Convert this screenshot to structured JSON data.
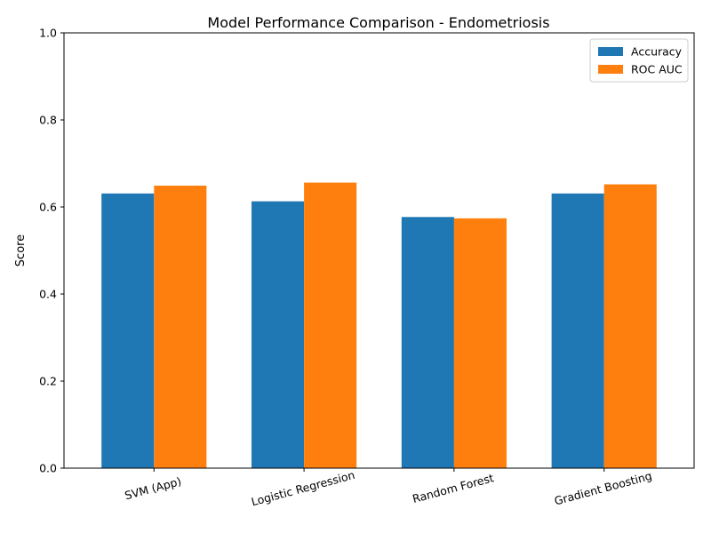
{
  "chart_data": {
    "type": "bar",
    "title": "Model Performance Comparison - Endometriosis",
    "xlabel": "",
    "ylabel": "Score",
    "ylim": [
      0,
      1.0
    ],
    "yticks": [
      "0.0",
      "0.2",
      "0.4",
      "0.6",
      "0.8",
      "1.0"
    ],
    "categories": [
      "SVM (App)",
      "Logistic Regression",
      "Random Forest",
      "Gradient Boosting"
    ],
    "series": [
      {
        "name": "Accuracy",
        "color": "#1f77b4",
        "values": [
          0.631,
          0.613,
          0.577,
          0.631
        ]
      },
      {
        "name": "ROC AUC",
        "color": "#ff7f0e",
        "values": [
          0.649,
          0.656,
          0.574,
          0.652
        ]
      }
    ],
    "legend_position": "top-right",
    "grid": false
  }
}
